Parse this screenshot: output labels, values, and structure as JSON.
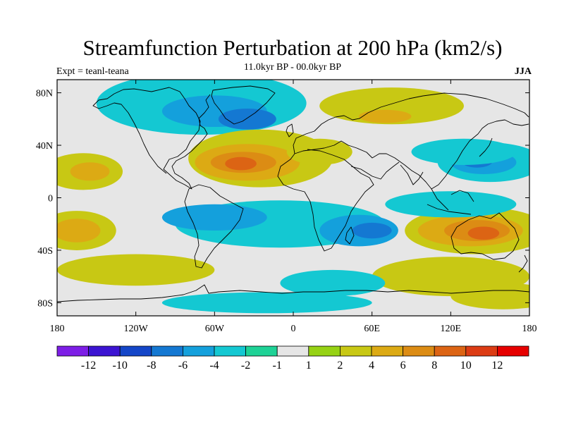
{
  "title": "Streamfunction Perturbation at 200 hPa (km2/s)",
  "subtitle": "11.0kyr BP - 00.0kyr BP",
  "left_label": "Expt = teanl-teana",
  "right_label": "JJA",
  "lat_ticks": [
    {
      "value": 80,
      "label": "80N"
    },
    {
      "value": 40,
      "label": "40N"
    },
    {
      "value": 0,
      "label": "0"
    },
    {
      "value": -40,
      "label": "40S"
    },
    {
      "value": -80,
      "label": "80S"
    }
  ],
  "lon_ticks": [
    {
      "value": -180,
      "label": "180"
    },
    {
      "value": -120,
      "label": "120W"
    },
    {
      "value": -60,
      "label": "60W"
    },
    {
      "value": 0,
      "label": "0"
    },
    {
      "value": 60,
      "label": "60E"
    },
    {
      "value": 120,
      "label": "120E"
    },
    {
      "value": 180,
      "label": "180"
    }
  ],
  "colorbar": {
    "colors": [
      "#7d1ee6",
      "#3c14d2",
      "#1446c8",
      "#1478d2",
      "#14a0dc",
      "#14c8d2",
      "#1ed296",
      "#e6e6e6",
      "#96d214",
      "#c8c814",
      "#dcaa14",
      "#dc8c14",
      "#dc6414",
      "#dc3c14",
      "#e60000"
    ],
    "labels": [
      "-12",
      "-10",
      "-8",
      "-6",
      "-4",
      "-2",
      "-1",
      "1",
      "2",
      "4",
      "6",
      "8",
      "10",
      "12"
    ]
  },
  "map_background": "#e6e6e6",
  "field": {
    "blobs": [
      {
        "lon": -70,
        "lat": 72,
        "rx": 80,
        "ry": 24,
        "level": 5
      },
      {
        "lon": -60,
        "lat": 66,
        "rx": 40,
        "ry": 12,
        "level": 4
      },
      {
        "lon": -35,
        "lat": 60,
        "rx": 22,
        "ry": 8,
        "level": 3
      },
      {
        "lon": 75,
        "lat": 70,
        "rx": 55,
        "ry": 14,
        "level": 9
      },
      {
        "lon": 70,
        "lat": 62,
        "rx": 20,
        "ry": 5,
        "level": 10
      },
      {
        "lon": -25,
        "lat": 30,
        "rx": 55,
        "ry": 22,
        "level": 9
      },
      {
        "lon": -35,
        "lat": 27,
        "rx": 40,
        "ry": 14,
        "level": 10
      },
      {
        "lon": -38,
        "lat": 27,
        "rx": 25,
        "ry": 8,
        "level": 11
      },
      {
        "lon": -40,
        "lat": 26,
        "rx": 12,
        "ry": 5,
        "level": 12
      },
      {
        "lon": 20,
        "lat": 35,
        "rx": 25,
        "ry": 10,
        "level": 9
      },
      {
        "lon": 150,
        "lat": 27,
        "rx": 40,
        "ry": 15,
        "level": 5
      },
      {
        "lon": 145,
        "lat": 27,
        "rx": 25,
        "ry": 9,
        "level": 4
      },
      {
        "lon": 140,
        "lat": 28,
        "rx": 12,
        "ry": 5,
        "level": 3
      },
      {
        "lon": 130,
        "lat": 35,
        "rx": 40,
        "ry": 10,
        "level": 5
      },
      {
        "lon": -160,
        "lat": 20,
        "rx": 30,
        "ry": 14,
        "level": 9
      },
      {
        "lon": -155,
        "lat": 20,
        "rx": 15,
        "ry": 7,
        "level": 10
      },
      {
        "lon": -165,
        "lat": -25,
        "rx": 30,
        "ry": 15,
        "level": 9
      },
      {
        "lon": -165,
        "lat": -25,
        "rx": 18,
        "ry": 9,
        "level": 10
      },
      {
        "lon": 140,
        "lat": -25,
        "rx": 55,
        "ry": 18,
        "level": 9
      },
      {
        "lon": 135,
        "lat": -25,
        "rx": 40,
        "ry": 12,
        "level": 10
      },
      {
        "lon": 140,
        "lat": -25,
        "rx": 25,
        "ry": 8,
        "level": 11
      },
      {
        "lon": 145,
        "lat": -27,
        "rx": 12,
        "ry": 5,
        "level": 12
      },
      {
        "lon": -10,
        "lat": -20,
        "rx": 80,
        "ry": 18,
        "level": 5
      },
      {
        "lon": -60,
        "lat": -15,
        "rx": 40,
        "ry": 10,
        "level": 4
      },
      {
        "lon": 50,
        "lat": -25,
        "rx": 30,
        "ry": 12,
        "level": 4
      },
      {
        "lon": 60,
        "lat": -25,
        "rx": 15,
        "ry": 6,
        "level": 3
      },
      {
        "lon": 120,
        "lat": -5,
        "rx": 50,
        "ry": 10,
        "level": 5
      },
      {
        "lon": -120,
        "lat": -55,
        "rx": 60,
        "ry": 12,
        "level": 9
      },
      {
        "lon": 120,
        "lat": -60,
        "rx": 60,
        "ry": 15,
        "level": 9
      },
      {
        "lon": 30,
        "lat": -65,
        "rx": 40,
        "ry": 10,
        "level": 5
      },
      {
        "lon": -20,
        "lat": -80,
        "rx": 80,
        "ry": 8,
        "level": 5
      },
      {
        "lon": 160,
        "lat": -75,
        "rx": 40,
        "ry": 10,
        "level": 9
      }
    ]
  }
}
